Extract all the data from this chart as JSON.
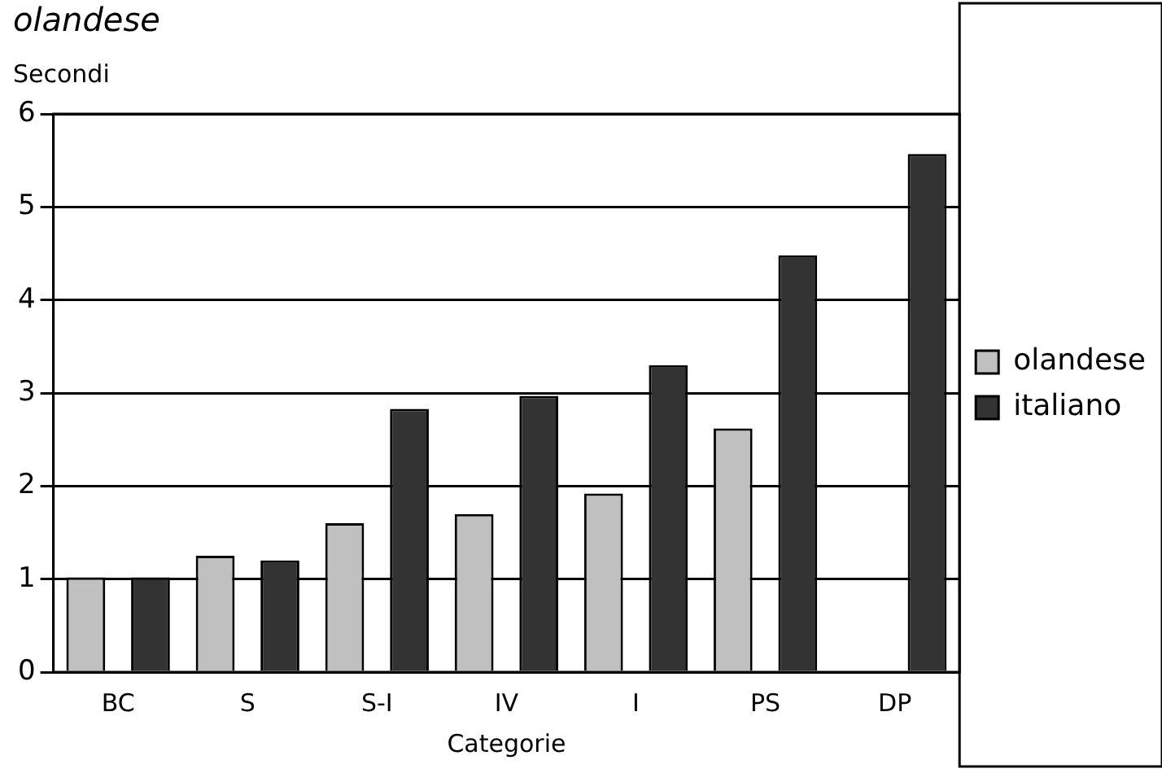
{
  "chart_data": {
    "type": "bar",
    "title": "olandese",
    "xlabel": "Categorie",
    "ylabel": "Secondi",
    "categories": [
      "BC",
      "S",
      "S-I",
      "IV",
      "I",
      "PS",
      "DP"
    ],
    "series": [
      {
        "name": "olandese",
        "color": "#c0c0c0",
        "values": [
          1.02,
          1.25,
          1.6,
          1.7,
          1.92,
          2.62,
          null
        ]
      },
      {
        "name": "italiano",
        "color": "#333333",
        "values": [
          1.02,
          1.2,
          2.83,
          2.97,
          3.3,
          4.48,
          5.57
        ]
      }
    ],
    "ylim": [
      0,
      6
    ],
    "yticks": [
      0,
      1,
      2,
      3,
      4,
      5,
      6
    ],
    "grid": "y",
    "legend": "right"
  }
}
